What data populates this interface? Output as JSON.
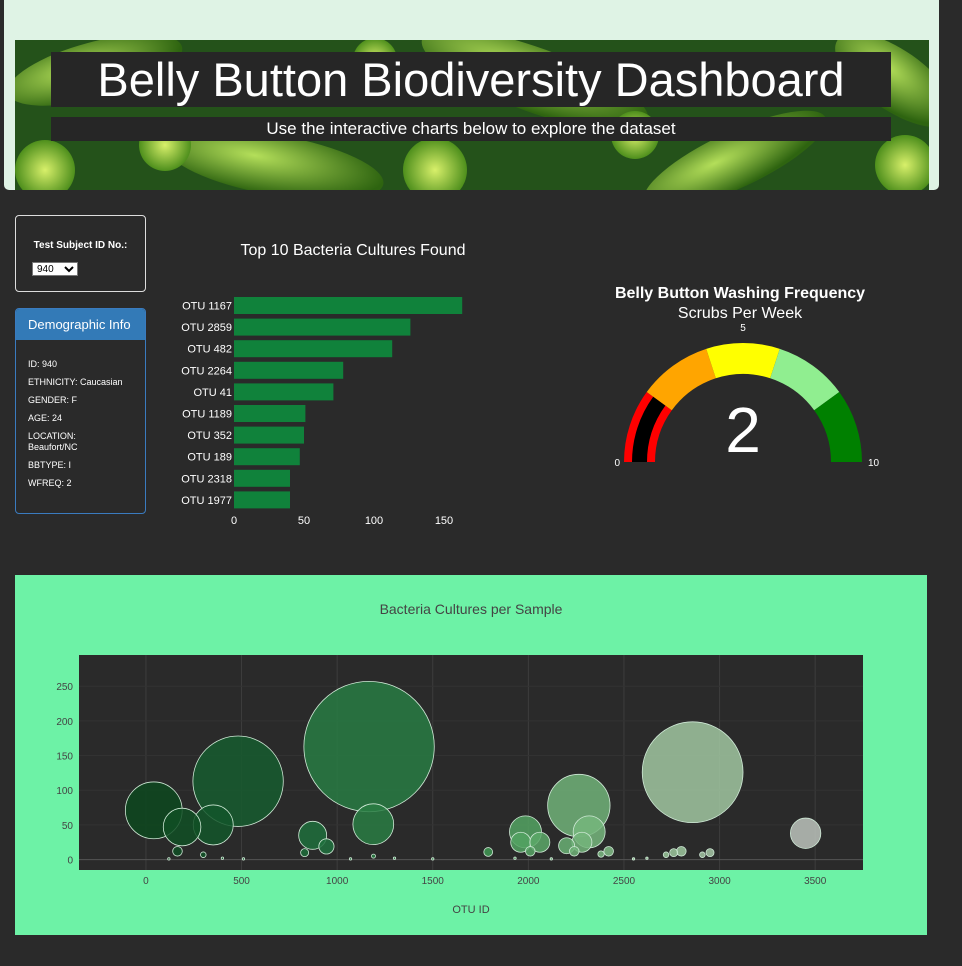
{
  "header": {
    "title": "Belly Button Biodiversity Dashboard",
    "subtitle": "Use the interactive charts below to explore the dataset"
  },
  "selector": {
    "label": "Test Subject ID No.:",
    "selected": "940"
  },
  "demographics": {
    "title": "Demographic Info",
    "lines": [
      "ID: 940",
      "ETHNICITY: Caucasian",
      "GENDER: F",
      "AGE: 24",
      "LOCATION: Beaufort/NC",
      "BBTYPE: I",
      "WFREQ: 2"
    ]
  },
  "colors": {
    "bar": "#10823b",
    "background": "#2a2a2a",
    "bubble_panel": "#6df2a6",
    "bubble_plot": "#2a2a2a",
    "gauge_steps": [
      "#ff0000",
      "#ffa500",
      "#ffff00",
      "#90ee90",
      "#008000"
    ]
  },
  "chart_data": [
    {
      "type": "bar",
      "orientation": "horizontal",
      "title": "Top 10 Bacteria Cultures Found",
      "categories": [
        "OTU 1167",
        "OTU 2859",
        "OTU 482",
        "OTU 2264",
        "OTU 41",
        "OTU 1189",
        "OTU 352",
        "OTU 189",
        "OTU 2318",
        "OTU 1977"
      ],
      "values": [
        163,
        126,
        113,
        78,
        71,
        51,
        50,
        47,
        40,
        40
      ],
      "xticks": [
        0,
        50,
        100,
        150
      ],
      "xlim": [
        0,
        170
      ]
    },
    {
      "type": "gauge",
      "title": "Belly Button Washing Frequency",
      "subtitle": "Scrubs Per Week",
      "value": 2,
      "range": [
        0,
        10
      ],
      "tick_labels": [
        "0",
        "5",
        "10"
      ],
      "steps": [
        [
          0,
          2
        ],
        [
          2,
          4
        ],
        [
          4,
          6
        ],
        [
          6,
          8
        ],
        [
          8,
          10
        ]
      ]
    },
    {
      "type": "scatter",
      "mode": "bubble",
      "title": "Bacteria Cultures per Sample",
      "xlabel": "OTU ID",
      "ylabel": "",
      "xlim": [
        -350,
        3750
      ],
      "ylim": [
        -15,
        295
      ],
      "xticks": [
        0,
        500,
        1000,
        1500,
        2000,
        2500,
        3000,
        3500
      ],
      "yticks": [
        0,
        50,
        100,
        150,
        200,
        250
      ],
      "points": [
        {
          "x": 41,
          "y": 71
        },
        {
          "x": 189,
          "y": 47
        },
        {
          "x": 352,
          "y": 50
        },
        {
          "x": 482,
          "y": 113
        },
        {
          "x": 1167,
          "y": 163
        },
        {
          "x": 1189,
          "y": 51
        },
        {
          "x": 872,
          "y": 35
        },
        {
          "x": 944,
          "y": 19
        },
        {
          "x": 165,
          "y": 12
        },
        {
          "x": 300,
          "y": 7
        },
        {
          "x": 830,
          "y": 10
        },
        {
          "x": 1190,
          "y": 5
        },
        {
          "x": 1790,
          "y": 11
        },
        {
          "x": 1985,
          "y": 40
        },
        {
          "x": 1960,
          "y": 25
        },
        {
          "x": 2010,
          "y": 12
        },
        {
          "x": 2060,
          "y": 25
        },
        {
          "x": 2200,
          "y": 20
        },
        {
          "x": 2264,
          "y": 78
        },
        {
          "x": 2318,
          "y": 40
        },
        {
          "x": 2280,
          "y": 25
        },
        {
          "x": 2240,
          "y": 12
        },
        {
          "x": 2380,
          "y": 8
        },
        {
          "x": 2420,
          "y": 12
        },
        {
          "x": 2720,
          "y": 7
        },
        {
          "x": 2760,
          "y": 10
        },
        {
          "x": 2800,
          "y": 12
        },
        {
          "x": 2859,
          "y": 126
        },
        {
          "x": 2910,
          "y": 7
        },
        {
          "x": 2950,
          "y": 10
        },
        {
          "x": 3450,
          "y": 38
        },
        {
          "x": 120,
          "y": 1
        },
        {
          "x": 400,
          "y": 2
        },
        {
          "x": 510,
          "y": 1
        },
        {
          "x": 1070,
          "y": 1
        },
        {
          "x": 1300,
          "y": 2
        },
        {
          "x": 1500,
          "y": 1
        },
        {
          "x": 1930,
          "y": 2
        },
        {
          "x": 2120,
          "y": 1
        },
        {
          "x": 2550,
          "y": 1
        },
        {
          "x": 2620,
          "y": 2
        }
      ]
    }
  ]
}
